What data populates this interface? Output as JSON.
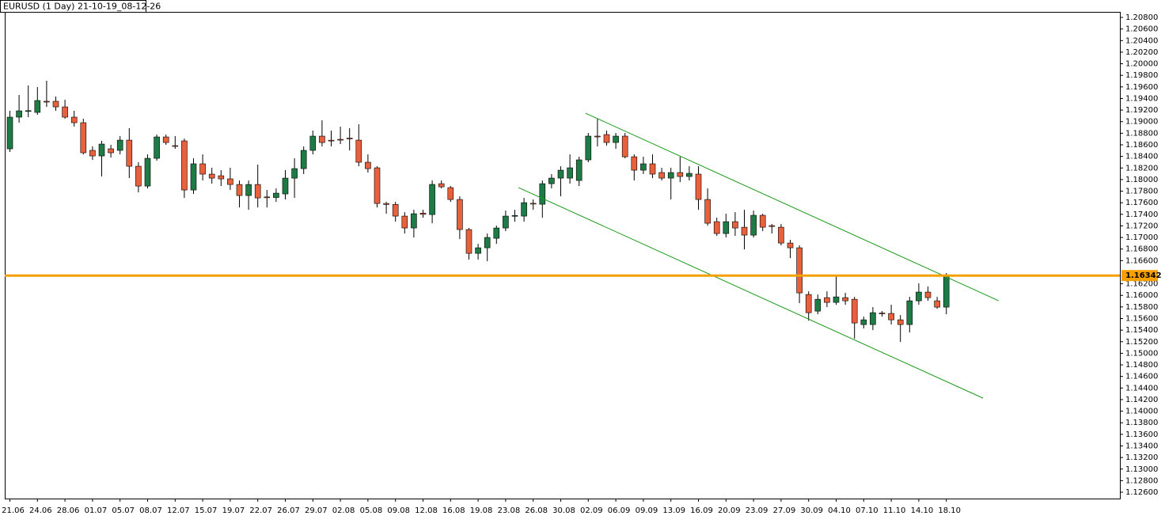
{
  "chart_data": {
    "type": "candlestick",
    "title": "EURUSD (1 Day) 21-10-19_08-12-26",
    "categories": [
      "21.06",
      null,
      null,
      "24.06",
      null,
      null,
      "28.06",
      null,
      null,
      "01.07",
      null,
      null,
      "05.07",
      null,
      null,
      "08.07",
      null,
      null,
      "12.07",
      null,
      null,
      "15.07",
      null,
      null,
      "19.07",
      null,
      null,
      "22.07",
      null,
      null,
      "26.07",
      null,
      null,
      "29.07",
      null,
      null,
      "02.08",
      null,
      null,
      "05.08",
      null,
      null,
      "09.08",
      null,
      null,
      "12.08",
      null,
      null,
      "16.08",
      null,
      null,
      "19.08",
      null,
      null,
      "23.08",
      null,
      null,
      "26.08",
      null,
      null,
      "30.08",
      null,
      null,
      "02.09",
      null,
      null,
      "06.09",
      null,
      null,
      "09.09",
      null,
      null,
      "13.09",
      null,
      null,
      "16.09",
      null,
      null,
      "20.09",
      null,
      null,
      "23.09",
      null,
      null,
      "27.09",
      null,
      null,
      "30.09",
      null,
      null,
      "04.10",
      null,
      null,
      "07.10",
      null,
      null,
      "11.10",
      null,
      null,
      "14.10",
      null,
      null,
      "18.10"
    ],
    "open": [
      1.18531,
      1.19078,
      1.19187,
      1.1916,
      1.19352,
      1.19352,
      1.19255,
      1.19078,
      1.18982,
      1.18504,
      1.18408,
      1.18531,
      1.18504,
      1.18681,
      1.1823,
      1.17888,
      1.18367,
      1.18736,
      1.18586,
      1.18668,
      1.1782,
      1.18272,
      1.18094,
      1.18066,
      1.18012,
      1.17915,
      1.17724,
      1.17915,
      1.177,
      1.1769,
      1.17752,
      1.18025,
      1.18189,
      1.18504,
      1.1875,
      1.1868,
      1.18695,
      1.18715,
      1.18681,
      1.18299,
      1.18203,
      1.17587,
      1.1757,
      1.17369,
      1.17164,
      1.1742,
      1.17396,
      1.17929,
      1.17861,
      1.17656,
      1.17137,
      1.16726,
      1.16822,
      1.16986,
      1.17164,
      1.17369,
      1.17369,
      1.1759,
      1.17574,
      1.17929,
      1.18025,
      1.18025,
      1.17984,
      1.1834,
      1.1875,
      1.18777,
      1.1864,
      1.1875,
      1.18394,
      1.18162,
      1.18272,
      1.18121,
      1.18025,
      1.18121,
      1.18053,
      1.18094,
      1.17656,
      1.17273,
      1.17068,
      1.17273,
      1.17177,
      1.17041,
      1.17383,
      1.17205,
      1.17177,
      1.16904,
      1.16822,
      1.16015,
      1.15728,
      1.15961,
      1.15879,
      1.15961,
      1.15933,
      1.15496,
      1.15496,
      1.15695,
      1.15688,
      1.15578,
      1.15496,
      1.15906,
      1.16057,
      1.15906,
      1.15797
    ],
    "high": [
      1.19187,
      1.19461,
      1.19625,
      1.19597,
      1.19707,
      1.19433,
      1.19378,
      1.19187,
      1.1905,
      1.18572,
      1.18668,
      1.186,
      1.1875,
      1.18887,
      1.18299,
      1.18435,
      1.18777,
      1.18777,
      1.1875,
      1.18709,
      1.18367,
      1.18435,
      1.18203,
      1.18162,
      1.18203,
      1.17984,
      1.17984,
      1.18258,
      1.1782,
      1.17847,
      1.18162,
      1.18367,
      1.18572,
      1.18846,
      1.19023,
      1.18846,
      1.18914,
      1.18887,
      1.18955,
      1.18435,
      1.1823,
      1.17615,
      1.17615,
      1.17437,
      1.17478,
      1.17478,
      1.17984,
      1.17984,
      1.17888,
      1.1771,
      1.17164,
      1.1689,
      1.17068,
      1.17205,
      1.17464,
      1.17478,
      1.17683,
      1.17656,
      1.17984,
      1.18094,
      1.1823,
      1.18435,
      1.18394,
      1.18805,
      1.1905,
      1.18846,
      1.18805,
      1.18805,
      1.18435,
      1.18394,
      1.18435,
      1.18203,
      1.18203,
      1.18394,
      1.1823,
      1.1823,
      1.17847,
      1.17341,
      1.1741,
      1.17437,
      1.17478,
      1.17464,
      1.1741,
      1.17232,
      1.17232,
      1.16959,
      1.16863,
      1.1607,
      1.16015,
      1.1607,
      1.16357,
      1.16043,
      1.15974,
      1.15633,
      1.15797,
      1.15728,
      1.15838,
      1.1566,
      1.15974,
      1.16207,
      1.16152,
      1.15974,
      1.16385
    ],
    "low": [
      1.18477,
      1.18982,
      1.19078,
      1.19119,
      1.19255,
      1.19187,
      1.1905,
      1.18914,
      1.18435,
      1.1834,
      1.18053,
      1.1838,
      1.18435,
      1.18025,
      1.17779,
      1.17847,
      1.18326,
      1.186,
      1.18531,
      1.17683,
      1.17752,
      1.17984,
      1.17929,
      1.17888,
      1.1782,
      1.17519,
      1.17478,
      1.17519,
      1.17519,
      1.17615,
      1.17656,
      1.17683,
      1.18094,
      1.18435,
      1.18572,
      1.18572,
      1.18613,
      1.18504,
      1.1823,
      1.18121,
      1.17519,
      1.1741,
      1.17273,
      1.17068,
      1.16998,
      1.17341,
      1.17246,
      1.17847,
      1.17615,
      1.16972,
      1.16617,
      1.16617,
      1.1659,
      1.1689,
      1.17109,
      1.17273,
      1.17273,
      1.17478,
      1.17341,
      1.17847,
      1.1771,
      1.17929,
      1.17888,
      1.18299,
      1.18572,
      1.18586,
      1.18531,
      1.18367,
      1.17984,
      1.18094,
      1.18025,
      1.17984,
      1.17656,
      1.17956,
      1.17984,
      1.17478,
      1.17205,
      1.17027,
      1.17,
      1.17027,
      1.16795,
      1.17,
      1.17109,
      1.17068,
      1.16863,
      1.16644,
      1.15865,
      1.15564,
      1.15674,
      1.15797,
      1.15838,
      1.15838,
      1.1525,
      1.15428,
      1.154,
      1.15633,
      1.15496,
      1.15195,
      1.15359,
      1.15838,
      1.15906,
      1.15769,
      1.15674
    ],
    "close": [
      1.19078,
      1.19187,
      1.1919,
      1.19365,
      1.19338,
      1.19255,
      1.19078,
      1.18982,
      1.18463,
      1.18408,
      1.18613,
      1.18463,
      1.18681,
      1.1823,
      1.17888,
      1.18367,
      1.18736,
      1.1864,
      1.1858,
      1.1782,
      1.18272,
      1.18094,
      1.18025,
      1.18012,
      1.17915,
      1.17724,
      1.17915,
      1.17683,
      1.1769,
      1.17765,
      1.18025,
      1.18189,
      1.18504,
      1.1875,
      1.1864,
      1.1867,
      1.1869,
      1.18705,
      1.18299,
      1.18189,
      1.17587,
      1.1757,
      1.17369,
      1.17164,
      1.1741,
      1.174,
      1.17916,
      1.17875,
      1.17656,
      1.17137,
      1.16726,
      1.16822,
      1.17,
      1.17164,
      1.17369,
      1.1738,
      1.17601,
      1.1758,
      1.17929,
      1.18025,
      1.18162,
      1.18203,
      1.1834,
      1.1875,
      1.1874,
      1.1864,
      1.1875,
      1.18394,
      1.18162,
      1.18272,
      1.18094,
      1.18025,
      1.18121,
      1.18053,
      1.18107,
      1.17656,
      1.17246,
      1.17068,
      1.17273,
      1.17164,
      1.17041,
      1.17383,
      1.17177,
      1.1719,
      1.16904,
      1.16822,
      1.16043,
      1.15701,
      1.15933,
      1.15879,
      1.15974,
      1.15906,
      1.15523,
      1.15578,
      1.15701,
      1.1569,
      1.15578,
      1.15496,
      1.15906,
      1.16057,
      1.15961,
      1.15797,
      1.16342
    ],
    "up_color": "#1e7b45",
    "down_color": "#e8603c",
    "ylim": [
      1.12491,
      1.20896
    ],
    "yticks": [
      {
        "value": 1.208,
        "label": "1.20800"
      },
      {
        "value": 1.206,
        "label": "1.20600"
      },
      {
        "value": 1.204,
        "label": "1.20400"
      },
      {
        "value": 1.202,
        "label": "1.20200"
      },
      {
        "value": 1.2,
        "label": "1.20000"
      },
      {
        "value": 1.198,
        "label": "1.19800"
      },
      {
        "value": 1.196,
        "label": "1.19600"
      },
      {
        "value": 1.194,
        "label": "1.19400"
      },
      {
        "value": 1.192,
        "label": "1.19200"
      },
      {
        "value": 1.19,
        "label": "1.19000"
      },
      {
        "value": 1.188,
        "label": "1.18800"
      },
      {
        "value": 1.186,
        "label": "1.18600"
      },
      {
        "value": 1.184,
        "label": "1.18400"
      },
      {
        "value": 1.182,
        "label": "1.18200"
      },
      {
        "value": 1.18,
        "label": "1.18000"
      },
      {
        "value": 1.178,
        "label": "1.17800"
      },
      {
        "value": 1.176,
        "label": "1.17600"
      },
      {
        "value": 1.174,
        "label": "1.17400"
      },
      {
        "value": 1.172,
        "label": "1.17200"
      },
      {
        "value": 1.17,
        "label": "1.17000"
      },
      {
        "value": 1.168,
        "label": "1.16800"
      },
      {
        "value": 1.166,
        "label": "1.16600"
      },
      {
        "value": 1.162,
        "label": "1.16200"
      },
      {
        "value": 1.16,
        "label": "1.16000"
      },
      {
        "value": 1.158,
        "label": "1.15800"
      },
      {
        "value": 1.156,
        "label": "1.15600"
      },
      {
        "value": 1.154,
        "label": "1.15400"
      },
      {
        "value": 1.152,
        "label": "1.15200"
      },
      {
        "value": 1.15,
        "label": "1.15000"
      },
      {
        "value": 1.148,
        "label": "1.14800"
      },
      {
        "value": 1.146,
        "label": "1.14600"
      },
      {
        "value": 1.144,
        "label": "1.14400"
      },
      {
        "value": 1.142,
        "label": "1.14200"
      },
      {
        "value": 1.14,
        "label": "1.14000"
      },
      {
        "value": 1.138,
        "label": "1.13800"
      },
      {
        "value": 1.136,
        "label": "1.13600"
      },
      {
        "value": 1.134,
        "label": "1.13400"
      },
      {
        "value": 1.132,
        "label": "1.13200"
      },
      {
        "value": 1.13,
        "label": "1.13000"
      },
      {
        "value": 1.128,
        "label": "1.12800"
      },
      {
        "value": 1.126,
        "label": "1.12600"
      }
    ],
    "price_line": 1.16342,
    "price_line_color": "#f5a000",
    "trendlines": [
      {
        "x": [
          62.7,
          107.7
        ],
        "y": [
          1.19146,
          1.15907
        ],
        "color": "#1a9a1a"
      },
      {
        "x": [
          55.4,
          106.0
        ],
        "y": [
          1.17861,
          1.14225
        ],
        "color": "#1a9a1a"
      }
    ]
  }
}
